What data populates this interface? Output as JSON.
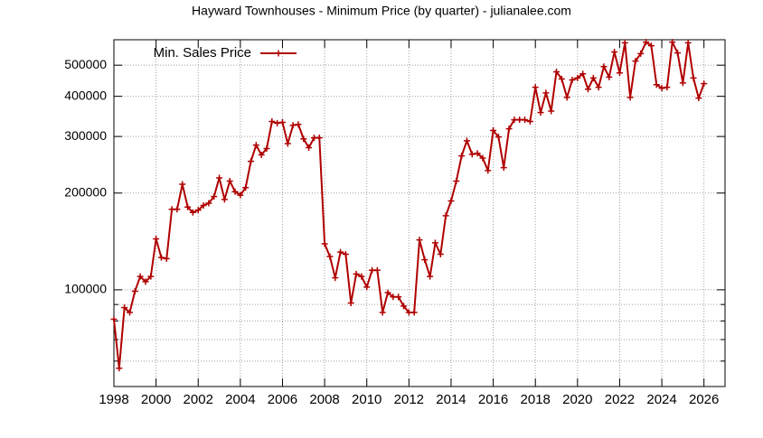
{
  "chart_data": {
    "type": "line",
    "title": "Hayward Townhouses - Minimum Price (by quarter) - julianalee.com",
    "x": [
      1998,
      1998.25,
      1998.5,
      1998.75,
      1999,
      1999.25,
      1999.5,
      1999.75,
      2000,
      2000.25,
      2000.5,
      2000.75,
      2001,
      2001.25,
      2001.5,
      2001.75,
      2002,
      2002.25,
      2002.5,
      2002.75,
      2003,
      2003.25,
      2003.5,
      2003.75,
      2004,
      2004.25,
      2004.5,
      2004.75,
      2005,
      2005.25,
      2005.5,
      2005.75,
      2006,
      2006.25,
      2006.5,
      2006.75,
      2007,
      2007.25,
      2007.5,
      2007.75,
      2008,
      2008.25,
      2008.5,
      2008.75,
      2009,
      2009.25,
      2009.5,
      2009.75,
      2010,
      2010.25,
      2010.5,
      2010.75,
      2011,
      2011.25,
      2011.5,
      2011.75,
      2012,
      2012.25,
      2012.5,
      2012.75,
      2013,
      2013.25,
      2013.5,
      2013.75,
      2014,
      2014.25,
      2014.5,
      2014.75,
      2015,
      2015.25,
      2015.5,
      2015.75,
      2016,
      2016.25,
      2016.5,
      2016.75,
      2017,
      2017.25,
      2017.5,
      2017.75,
      2018,
      2018.25,
      2018.5,
      2018.75,
      2019,
      2019.25,
      2019.5,
      2019.75,
      2020,
      2020.25,
      2020.5,
      2020.75,
      2021,
      2021.25,
      2021.5,
      2021.75,
      2022,
      2022.25,
      2022.5,
      2022.75,
      2023,
      2023.25,
      2023.5,
      2023.75,
      2024,
      2024.25,
      2024.5,
      2024.75,
      2025,
      2025.25,
      2025.5,
      2025.75,
      2026
    ],
    "series": [
      {
        "name": "Min. Sales Price",
        "color": "#b00000",
        "values": [
          81000,
          57000,
          88000,
          85000,
          99000,
          110000,
          106000,
          110000,
          144000,
          126000,
          125000,
          178000,
          178000,
          213000,
          181000,
          174000,
          177000,
          183000,
          186000,
          195000,
          223000,
          191000,
          218000,
          202000,
          197000,
          208000,
          251000,
          282000,
          263000,
          275000,
          334000,
          330000,
          332000,
          285000,
          325000,
          327000,
          295000,
          277000,
          297000,
          297000,
          139000,
          127000,
          109000,
          131000,
          129000,
          91000,
          112000,
          110000,
          102000,
          115000,
          115000,
          85000,
          98000,
          95000,
          95000,
          89000,
          85000,
          85000,
          143000,
          124000,
          110000,
          140000,
          129000,
          170000,
          189000,
          218000,
          261000,
          291000,
          264000,
          266000,
          257000,
          235000,
          313000,
          299000,
          240000,
          317000,
          338000,
          338000,
          338000,
          334000,
          427000,
          356000,
          410000,
          360000,
          477000,
          453000,
          397000,
          450000,
          456000,
          470000,
          421000,
          456000,
          427000,
          495000,
          459000,
          550000,
          473000,
          587000,
          397000,
          515000,
          543000,
          590000,
          575000,
          435000,
          424000,
          427000,
          590000,
          546000,
          440000,
          587000,
          456000,
          395000,
          438000
        ]
      }
    ],
    "xlim": [
      1998,
      2027
    ],
    "xticks": [
      1998,
      2000,
      2002,
      2004,
      2006,
      2008,
      2010,
      2012,
      2014,
      2016,
      2018,
      2020,
      2022,
      2024,
      2026
    ],
    "ylim": [
      50000,
      600000
    ],
    "yticks": [
      100000,
      200000,
      300000,
      400000,
      500000
    ],
    "y_minor_ticks": [
      60000,
      70000,
      80000,
      90000
    ],
    "log_y": true,
    "grid": true,
    "legend": "top-left"
  }
}
